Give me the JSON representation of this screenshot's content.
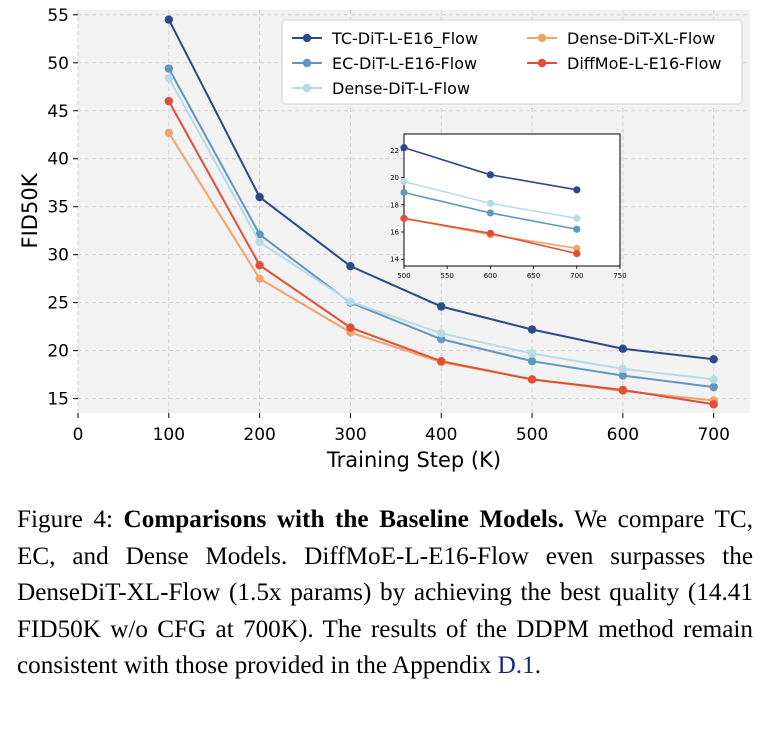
{
  "chart_data": {
    "type": "line",
    "xlabel": "Training Step (K)",
    "ylabel": "FID50K",
    "xlim": [
      0,
      740
    ],
    "ylim": [
      13.5,
      55.5
    ],
    "xticks": [
      0,
      100,
      200,
      300,
      400,
      500,
      600,
      700
    ],
    "yticks": [
      15,
      20,
      25,
      30,
      35,
      40,
      45,
      50,
      55
    ],
    "grid": true,
    "legend": "top-right",
    "x": [
      100,
      200,
      300,
      400,
      500,
      600,
      700
    ],
    "series": [
      {
        "name": "TC-DiT-L-E16_Flow",
        "color": "#2c4a8a",
        "values": [
          54.5,
          36.0,
          28.8,
          24.6,
          22.2,
          20.2,
          19.1
        ]
      },
      {
        "name": "EC-DiT-L-E16-Flow",
        "color": "#5f97bf",
        "values": [
          49.4,
          32.1,
          25.0,
          21.2,
          18.9,
          17.4,
          16.2
        ]
      },
      {
        "name": "Dense-DiT-L-Flow",
        "color": "#b6dbe6",
        "values": [
          48.4,
          31.3,
          25.1,
          21.8,
          19.7,
          18.1,
          17.0
        ]
      },
      {
        "name": "Dense-DiT-XL-Flow",
        "color": "#f2a36a",
        "values": [
          42.7,
          27.5,
          21.9,
          18.8,
          17.0,
          15.8,
          14.8
        ]
      },
      {
        "name": "DiffMoE-L-E16-Flow",
        "color": "#df4f35",
        "values": [
          46.0,
          28.9,
          22.4,
          18.9,
          17.0,
          15.9,
          14.41
        ]
      }
    ],
    "inset": {
      "xlim": [
        500,
        750
      ],
      "ylim": [
        13.5,
        23.2
      ],
      "xticks": [
        500,
        550,
        600,
        650,
        700,
        750
      ],
      "yticks": [
        14,
        16,
        18,
        20,
        22
      ],
      "x_from": 500
    }
  },
  "caption": {
    "prefix": "Figure 4: ",
    "bold": "Comparisons with the Baseline Models.",
    "body": " We compare TC, EC, and Dense Models. DiffMoE-L-E16-Flow even surpasses the DenseDiT-XL-Flow (1.5x params) by achieving the best quality (14.41 FID50K w/o CFG at 700K). The results of the DDPM method remain consistent with those provided in the Appendix ",
    "ref": "D.1",
    "suffix": "."
  }
}
